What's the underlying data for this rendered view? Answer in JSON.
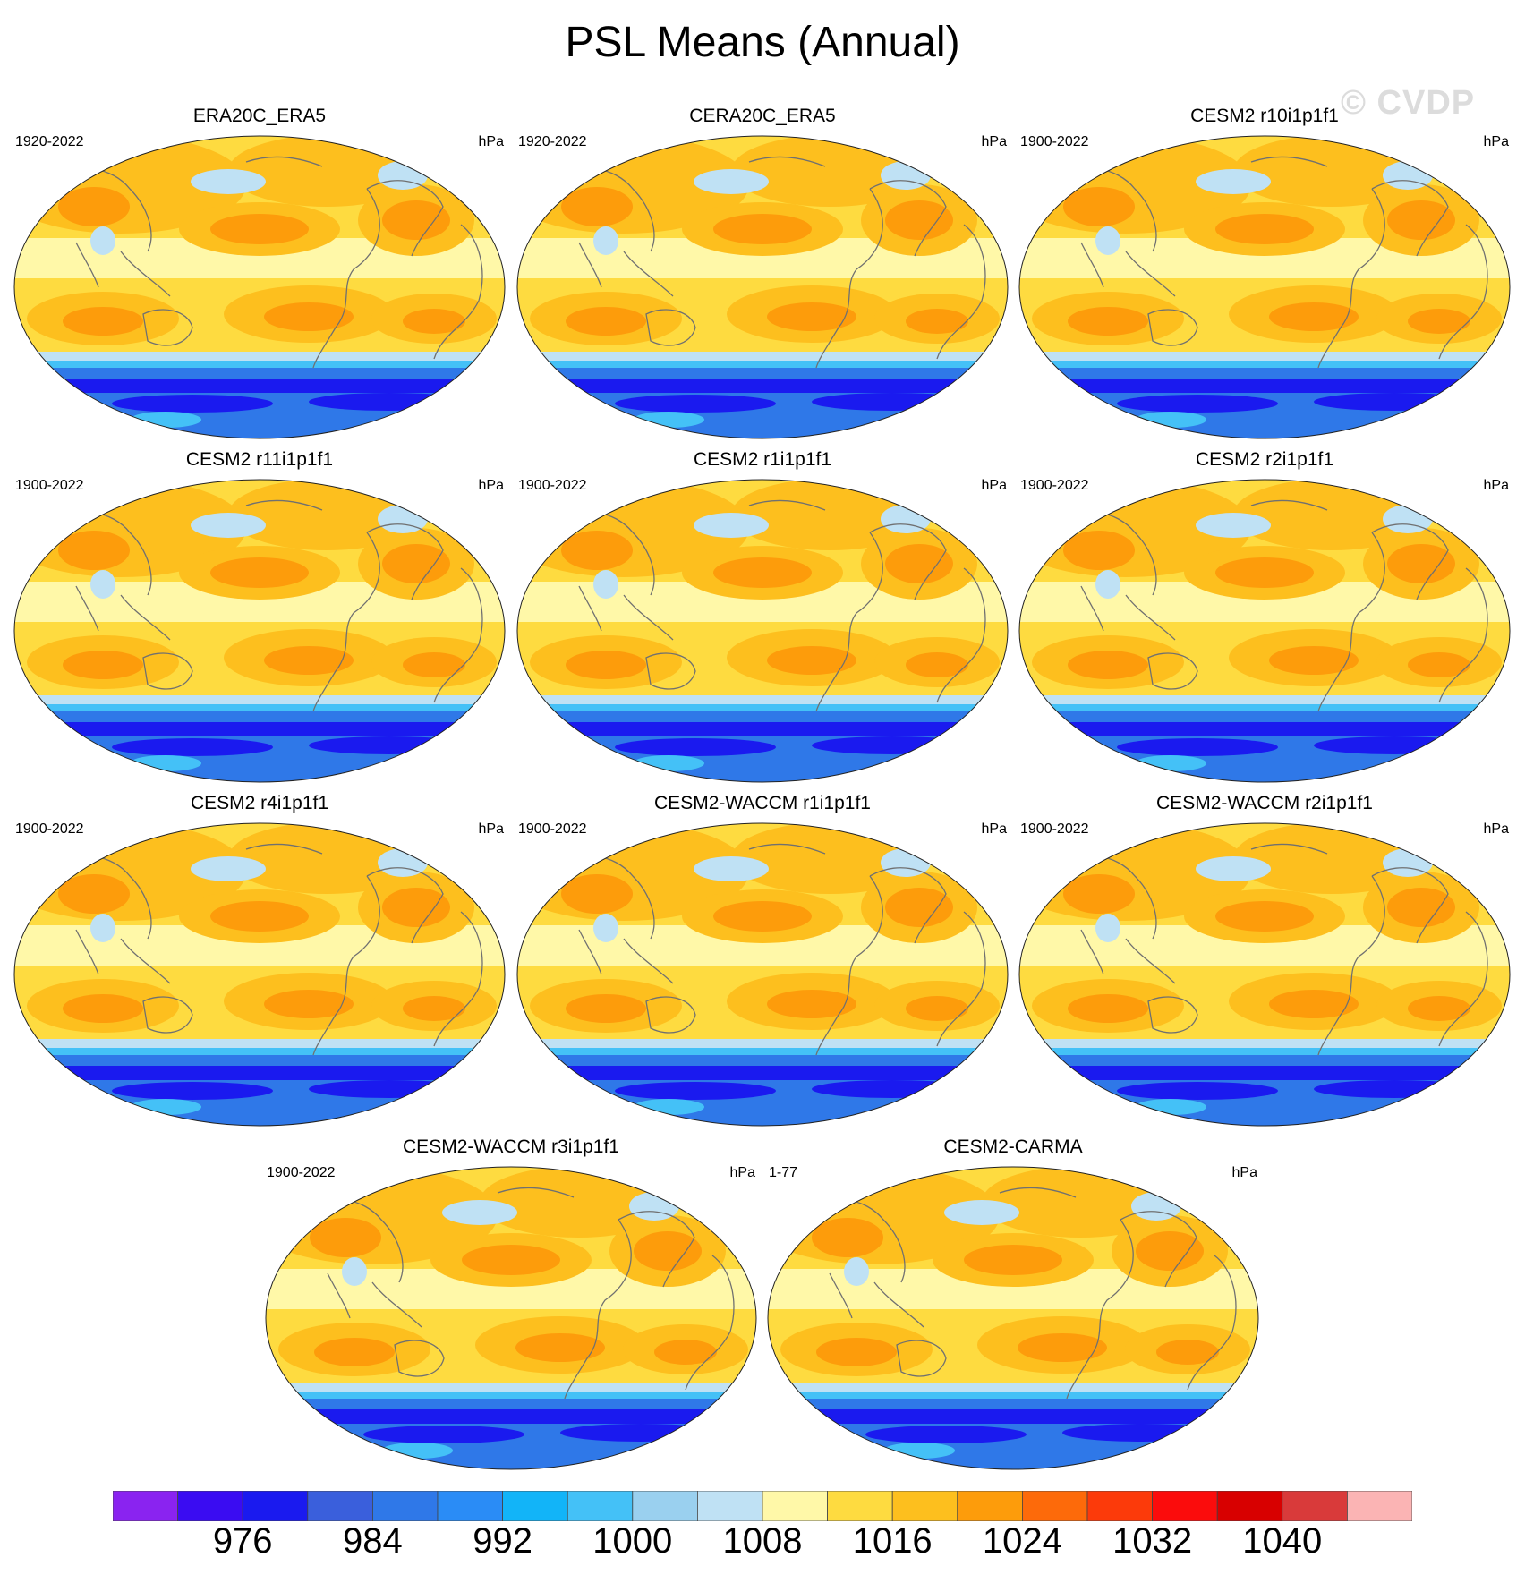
{
  "title": "PSL Means (Annual)",
  "watermark": "© CVDP",
  "panels": [
    {
      "title": "ERA20C_ERA5",
      "years": "1920-2022",
      "units": "hPa"
    },
    {
      "title": "CERA20C_ERA5",
      "years": "1920-2022",
      "units": "hPa"
    },
    {
      "title": "CESM2 r10i1p1f1",
      "years": "1900-2022",
      "units": "hPa"
    },
    {
      "title": "CESM2 r11i1p1f1",
      "years": "1900-2022",
      "units": "hPa"
    },
    {
      "title": "CESM2 r1i1p1f1",
      "years": "1900-2022",
      "units": "hPa"
    },
    {
      "title": "CESM2 r2i1p1f1",
      "years": "1900-2022",
      "units": "hPa"
    },
    {
      "title": "CESM2 r4i1p1f1",
      "years": "1900-2022",
      "units": "hPa"
    },
    {
      "title": "CESM2-WACCM r1i1p1f1",
      "years": "1900-2022",
      "units": "hPa"
    },
    {
      "title": "CESM2-WACCM r2i1p1f1",
      "years": "1900-2022",
      "units": "hPa"
    },
    {
      "title": "CESM2-WACCM r3i1p1f1",
      "years": "1900-2022",
      "units": "hPa"
    },
    {
      "title": "CESM2-CARMA",
      "years": "1-77",
      "units": "hPa"
    }
  ],
  "colorbar": {
    "colors": [
      "#8a23f0",
      "#3a0cf2",
      "#1a1aef",
      "#3a5fdc",
      "#2f78e8",
      "#2a8cf6",
      "#12b4f8",
      "#44c1f7",
      "#9ad0ef",
      "#bfe1f4",
      "#fff8a8",
      "#fedb40",
      "#fdbf1e",
      "#fd9c0b",
      "#fd6a0a",
      "#fc3a0a",
      "#fb0c0c",
      "#d80000",
      "#d93a3a",
      "#fbb4b4"
    ],
    "labels": [
      "976",
      "984",
      "992",
      "1000",
      "1008",
      "1016",
      "1024",
      "1032",
      "1040"
    ]
  },
  "colors": {
    "band_deep_blue": "#1a1aef",
    "band_blue": "#2f78e8",
    "band_light_blue": "#44c1f7",
    "pale_blue": "#bfe1f4",
    "pale_yellow": "#fff8a8",
    "yellow": "#fedb40",
    "gold": "#fdbf1e",
    "orange": "#fd9c0b",
    "dark_orange": "#fd6a0a",
    "coast": "#707070"
  }
}
